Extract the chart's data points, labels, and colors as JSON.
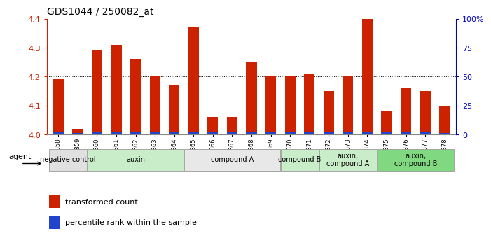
{
  "title": "GDS1044 / 250082_at",
  "samples": [
    "GSM25858",
    "GSM25859",
    "GSM25860",
    "GSM25861",
    "GSM25862",
    "GSM25863",
    "GSM25864",
    "GSM25865",
    "GSM25866",
    "GSM25867",
    "GSM25868",
    "GSM25869",
    "GSM25870",
    "GSM25871",
    "GSM25872",
    "GSM25873",
    "GSM25874",
    "GSM25875",
    "GSM25876",
    "GSM25877",
    "GSM25878"
  ],
  "red_values": [
    4.19,
    4.02,
    4.29,
    4.31,
    4.26,
    4.2,
    4.17,
    4.37,
    4.06,
    4.06,
    4.25,
    4.2,
    4.2,
    4.21,
    4.15,
    4.2,
    4.4,
    4.08,
    4.16,
    4.15,
    4.1
  ],
  "blue_positions": [
    0.1,
    0.07,
    0.1,
    0.1,
    0.1,
    0.1,
    0.1,
    0.1,
    0.1,
    0.1,
    0.1,
    0.1,
    0.1,
    0.1,
    0.1,
    0.1,
    0.1,
    0.1,
    0.1,
    0.1,
    0.07
  ],
  "ylim_left": [
    4.0,
    4.4
  ],
  "yticks_left": [
    4.0,
    4.1,
    4.2,
    4.3,
    4.4
  ],
  "yticks_right": [
    0,
    25,
    50,
    75,
    100
  ],
  "ytick_labels_right": [
    "0",
    "25",
    "50",
    "75",
    "100%"
  ],
  "groups": [
    {
      "label": "negative control",
      "start": 0,
      "end": 2,
      "color": "#e0e0e0"
    },
    {
      "label": "auxin",
      "start": 2,
      "end": 7,
      "color": "#c8edc8"
    },
    {
      "label": "compound A",
      "start": 7,
      "end": 12,
      "color": "#e8e8e8"
    },
    {
      "label": "compound B",
      "start": 12,
      "end": 14,
      "color": "#c8edc8"
    },
    {
      "label": "auxin,\ncompound A",
      "start": 14,
      "end": 17,
      "color": "#c8edc8"
    },
    {
      "label": "auxin,\ncompound B",
      "start": 17,
      "end": 21,
      "color": "#80d880"
    }
  ],
  "red_color": "#cc2200",
  "blue_color": "#2244cc",
  "bar_width": 0.55,
  "background_color": "#ffffff",
  "left_tick_color": "#cc2200",
  "right_tick_color": "#0000bb",
  "agent_label": "agent"
}
